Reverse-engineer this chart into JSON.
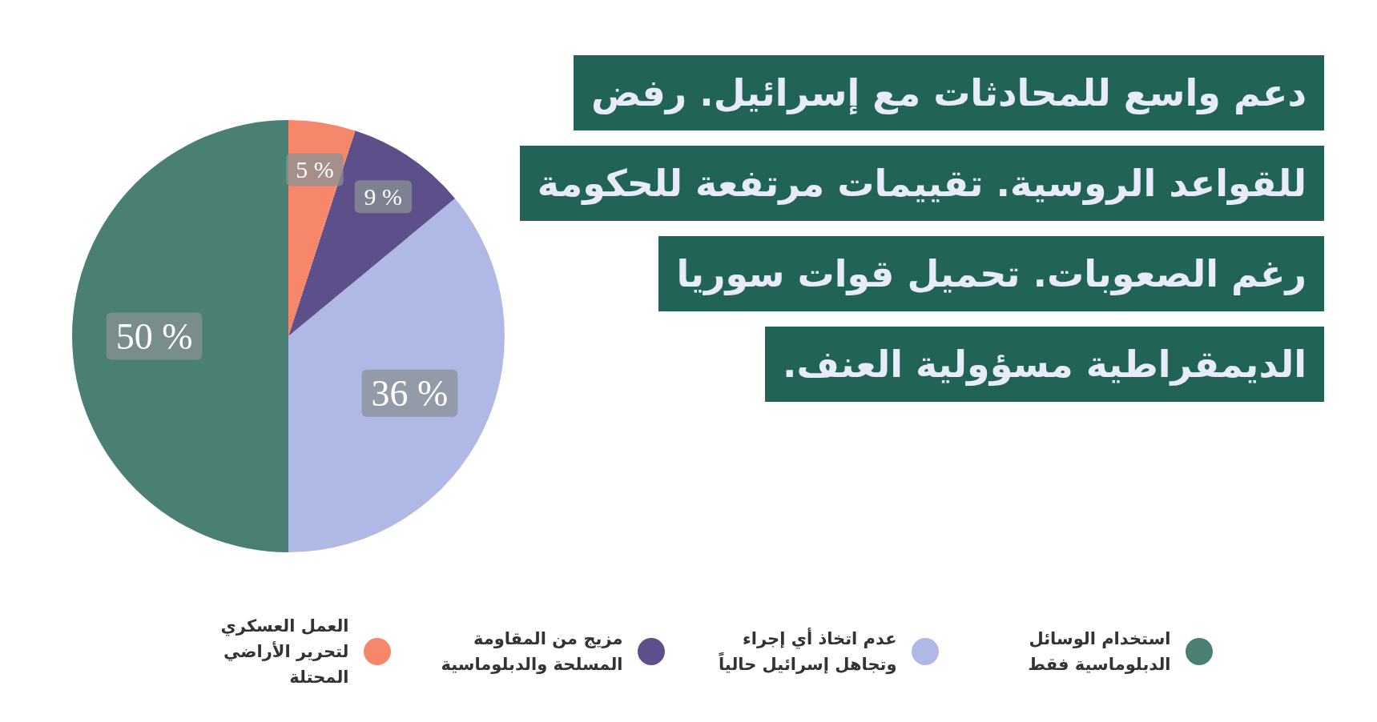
{
  "chart_data": {
    "type": "pie",
    "title": "دعم واسع للمحادثات مع إسرائيل. رفض للقواعد الروسية. تقييمات مرتفعة للحكومة رغم الصعوبات. تحميل قوات سوريا الديمقراطية مسؤولية العنف.",
    "categories": [
      "استخدام الوسائل الدبلوماسية فقط",
      "عدم اتخاذ أي إجراء وتجاهل إسرائيل حالياً",
      "مزيج من المقاومة المسلحة والدبلوماسية",
      "العمل العسكري لتحرير الأراضي المحتلة"
    ],
    "values": [
      50,
      36,
      9,
      5
    ],
    "value_labels": [
      "50 %",
      "36 %",
      "9 %",
      "5 %"
    ],
    "colors": [
      "#4a7f74",
      "#b0b8e6",
      "#5c4f8a",
      "#f7876a"
    ],
    "legend": "bottom"
  }
}
